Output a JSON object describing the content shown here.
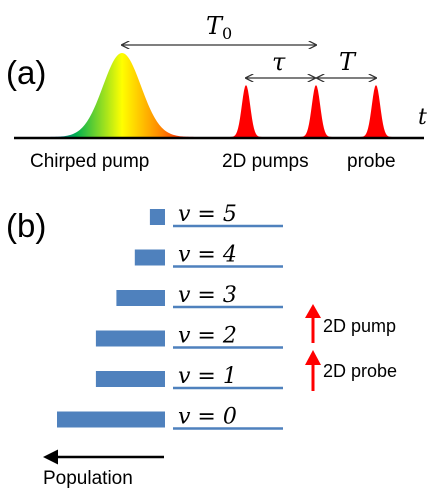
{
  "panel_a": {
    "label": "(a)",
    "T0_label": "T",
    "T0_sub": "0",
    "tau_label": "τ",
    "T_label": "T",
    "t_label": "t",
    "captions": {
      "chirped": "Chirped pump",
      "pumps2d": "2D pumps",
      "probe": "probe"
    },
    "colors": {
      "pulse": "#ff0000",
      "axis": "#000000",
      "arrow": "#333333"
    },
    "chirped_gradient": [
      "#1a1aff",
      "#00b050",
      "#ffff00",
      "#ff8000",
      "#ff0000",
      "#c00040"
    ]
  },
  "panel_b": {
    "label": "(b)",
    "levels": [
      {
        "v_label": "v = 5",
        "population": 0.14
      },
      {
        "v_label": "v = 4",
        "population": 0.28
      },
      {
        "v_label": "v = 3",
        "population": 0.45
      },
      {
        "v_label": "v = 2",
        "population": 0.64
      },
      {
        "v_label": "v = 1",
        "population": 0.64
      },
      {
        "v_label": "v = 0",
        "population": 1.0
      }
    ],
    "pump_label": "2D pump",
    "probe_label": "2D probe",
    "population_label": "Population",
    "colors": {
      "bar": "#4f81bd",
      "level_line": "#4f81bd",
      "arrow": "#ff0000"
    }
  }
}
